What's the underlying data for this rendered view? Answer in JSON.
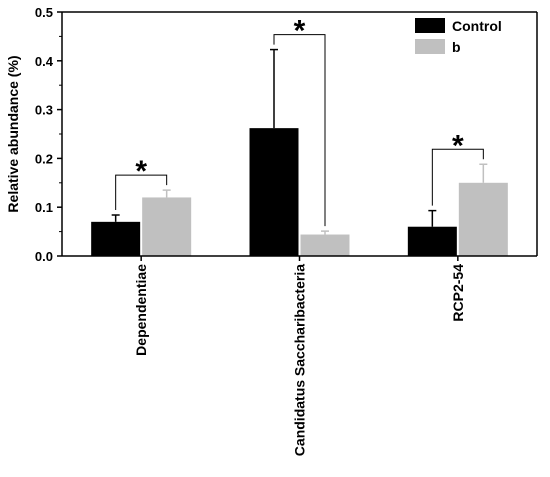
{
  "chart_data": {
    "type": "bar",
    "ylabel": "Relative abundance (%)",
    "ylim": [
      0,
      0.5
    ],
    "yticks": [
      "0.0",
      "0.1",
      "0.2",
      "0.3",
      "0.4",
      "0.5"
    ],
    "categories": [
      "Dependentiae",
      "Candidatus  Saccharibacteria",
      "RCP2-54"
    ],
    "series": [
      {
        "name": "Control",
        "color": "#000000",
        "values": [
          0.07,
          0.262,
          0.06
        ],
        "errors": [
          0.014,
          0.161,
          0.033
        ]
      },
      {
        "name": "b",
        "color": "#c0c0c0",
        "values": [
          0.12,
          0.044,
          0.15
        ],
        "errors": [
          0.015,
          0.007,
          0.038
        ]
      }
    ],
    "significance": [
      {
        "category": "Dependentiae",
        "label": "*"
      },
      {
        "category": "Candidatus  Saccharibacteria",
        "label": "*"
      },
      {
        "category": "RCP2-54",
        "label": "*"
      }
    ],
    "legend_position": "top-right",
    "grid": false
  }
}
